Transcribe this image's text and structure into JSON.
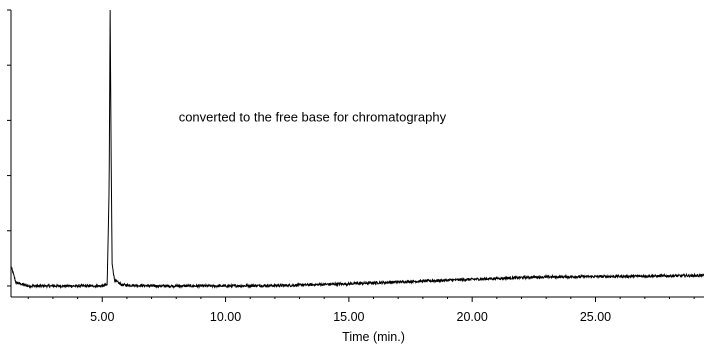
{
  "chart_data": {
    "type": "line",
    "title": "",
    "xlabel": "Time (min.)",
    "ylabel": "",
    "xlim": [
      1.3,
      29.4
    ],
    "ylim": [
      -1,
      25
    ],
    "x_ticks": [
      5,
      10,
      15,
      20,
      25
    ],
    "x_tick_labels": [
      "5.00",
      "10.00",
      "15.00",
      "20.00",
      "25.00"
    ],
    "y_minor_ticks": [
      0,
      5,
      10,
      15,
      20,
      25
    ],
    "grid": false,
    "legend": "none",
    "annotations": [
      {
        "text": "converted to the free base for chromatography",
        "x": 8.1,
        "y": 14.9
      }
    ],
    "series": [
      {
        "color": "#000000",
        "x": [
          1.3,
          1.5,
          2.0,
          3.0,
          4.0,
          5.0,
          5.2,
          5.28,
          5.32,
          5.36,
          5.4,
          5.5,
          5.8,
          7.0,
          10.0,
          12.5,
          15.0,
          17.5,
          20.0,
          22.5,
          25.0,
          27.5,
          29.4
        ],
        "y": [
          1.8,
          0.3,
          0.0,
          0.0,
          0.0,
          0.0,
          0.1,
          9.0,
          25.0,
          12.0,
          2.0,
          0.5,
          0.1,
          0.0,
          0.0,
          0.05,
          0.2,
          0.4,
          0.6,
          0.8,
          0.85,
          0.9,
          0.95
        ],
        "noise_amplitude": 0.12
      }
    ]
  }
}
